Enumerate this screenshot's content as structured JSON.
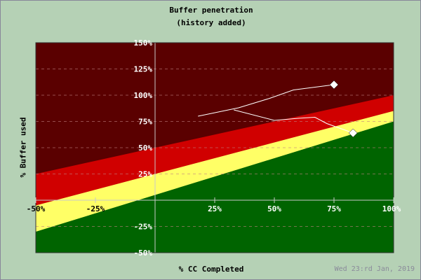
{
  "chart_data": {
    "type": "line",
    "title": "Buffer penetration",
    "subtitle": "(history added)",
    "xlabel": "% CC Completed",
    "ylabel": "% Buffer used",
    "xlim": [
      -50,
      100
    ],
    "ylim": [
      -50,
      150
    ],
    "xticks": [
      {
        "v": -50,
        "label": "-50%"
      },
      {
        "v": -25,
        "label": "-25%"
      },
      {
        "v": 25,
        "label": "25%"
      },
      {
        "v": 50,
        "label": "50%"
      },
      {
        "v": 75,
        "label": "75%"
      },
      {
        "v": 100,
        "label": "100%"
      }
    ],
    "yticks": [
      {
        "v": 150,
        "label": "150%"
      },
      {
        "v": 125,
        "label": "125%"
      },
      {
        "v": 100,
        "label": "100%"
      },
      {
        "v": 75,
        "label": "75%"
      },
      {
        "v": 50,
        "label": "50%"
      },
      {
        "v": 25,
        "label": "25%"
      },
      {
        "v": -25,
        "label": "-25%"
      },
      {
        "v": -50,
        "label": "-50%"
      }
    ],
    "grid": true,
    "zones": [
      {
        "name": "green",
        "color": "#006400",
        "upper": [
          [
            -50,
            -30
          ],
          [
            100,
            75
          ]
        ]
      },
      {
        "name": "yellow",
        "color": "#ffff66",
        "upper": [
          [
            -50,
            -5
          ],
          [
            100,
            85
          ]
        ]
      },
      {
        "name": "red",
        "color": "#d00000",
        "upper": [
          [
            -50,
            25
          ],
          [
            100,
            100
          ]
        ]
      },
      {
        "name": "dark-red",
        "color": "#5a0000",
        "upper": [
          [
            -50,
            150
          ],
          [
            100,
            150
          ]
        ]
      }
    ],
    "series": [
      {
        "points": [
          [
            18,
            80
          ],
          [
            35,
            88
          ],
          [
            48,
            97
          ],
          [
            58,
            105
          ],
          [
            75,
            110
          ]
        ],
        "color": "#ffffff"
      },
      {
        "points": [
          [
            33,
            86
          ],
          [
            50,
            76
          ],
          [
            60,
            78
          ],
          [
            67,
            79
          ],
          [
            72,
            73
          ],
          [
            83,
            64
          ]
        ],
        "color": "#ffffff"
      }
    ],
    "date": "Wed 23:rd Jan, 2019"
  }
}
